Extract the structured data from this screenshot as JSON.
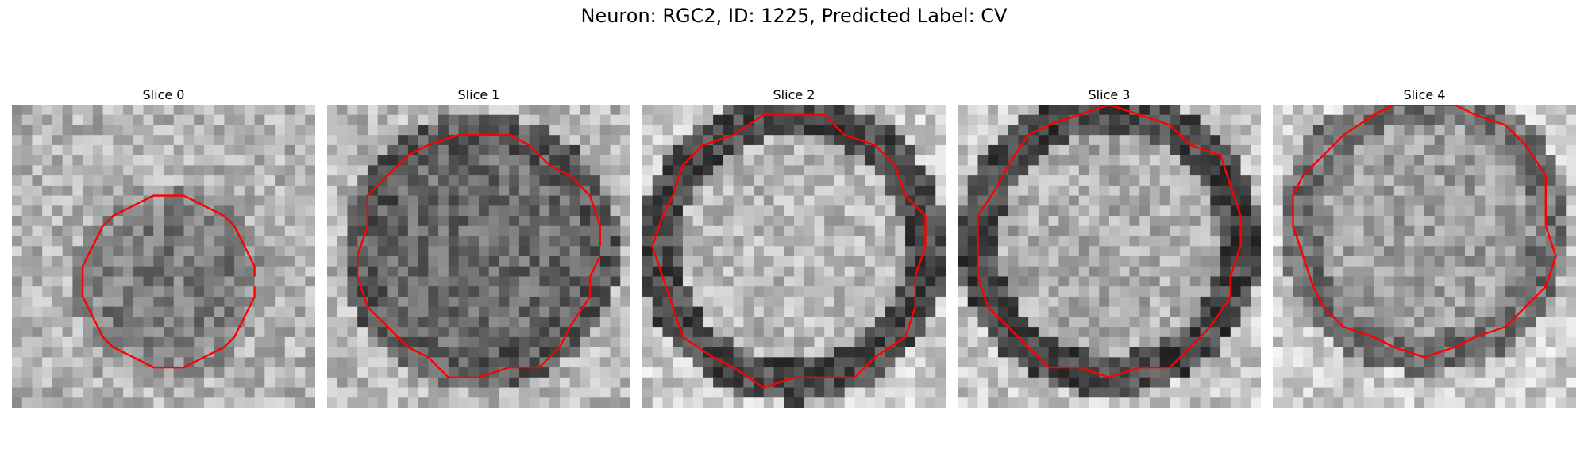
{
  "figure": {
    "title": "Neuron: RGC2, ID: 1225, Predicted Label: CV"
  },
  "colors": {
    "contour": "#ff0000",
    "background": "#ffffff"
  },
  "panels": [
    {
      "title": "Slice 0"
    },
    {
      "title": "Slice 1"
    },
    {
      "title": "Slice 2"
    },
    {
      "title": "Slice 3"
    },
    {
      "title": "Slice 4"
    }
  ]
}
